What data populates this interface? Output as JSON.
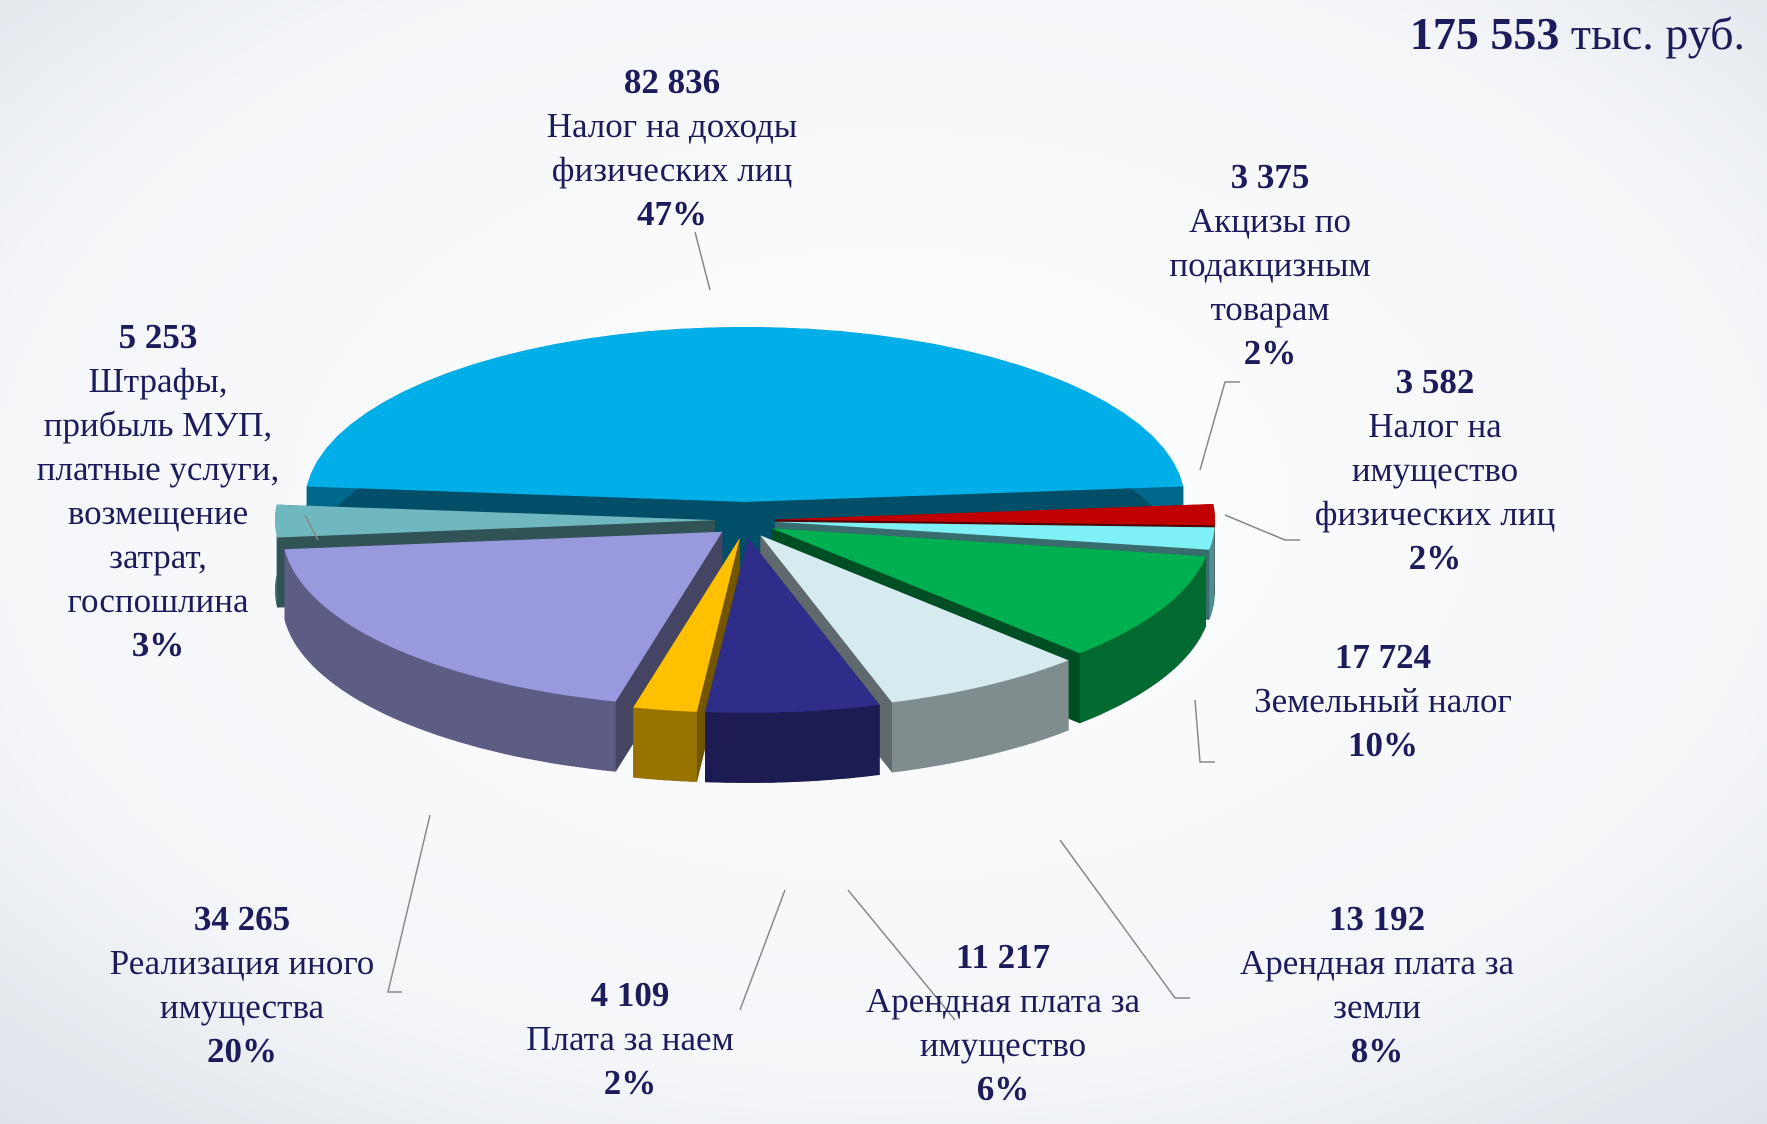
{
  "chart_data": {
    "type": "pie",
    "total": "175 553",
    "unit": "тыс. руб.",
    "labels": [
      [
        "Налог на доходы",
        "физических лиц"
      ],
      [
        "Акцизы по",
        "подакцизным",
        "товарам"
      ],
      [
        "Налог на",
        "имущество",
        "физических лиц"
      ],
      [
        "Земельный налог"
      ],
      [
        "Арендная плата за",
        "земли"
      ],
      [
        "Арендная плата за",
        "имущество"
      ],
      [
        "Плата за наем"
      ],
      [
        "Реализация иного",
        "имущества"
      ],
      [
        "Штрафы,",
        "прибыль МУП,",
        "платные услуги,",
        "возмещение",
        "затрат,",
        "госпошлина"
      ]
    ],
    "values": [
      82836,
      3375,
      3582,
      17724,
      13192,
      11217,
      4109,
      34265,
      5253
    ],
    "value_labels": [
      "82 836",
      "3 375",
      "3 582",
      "17 724",
      "13 192",
      "11 217",
      "4 109",
      "34 265",
      "5 253"
    ],
    "percent_labels": [
      "47%",
      "2%",
      "2%",
      "10%",
      "8%",
      "6%",
      "2%",
      "20%",
      "3%"
    ],
    "colors": [
      "#00aee8",
      "#c00000",
      "#7ff0f5",
      "#00b050",
      "#d6ebef",
      "#2e2e8a",
      "#ffc000",
      "#9999dd",
      "#6fb8c0"
    ]
  }
}
